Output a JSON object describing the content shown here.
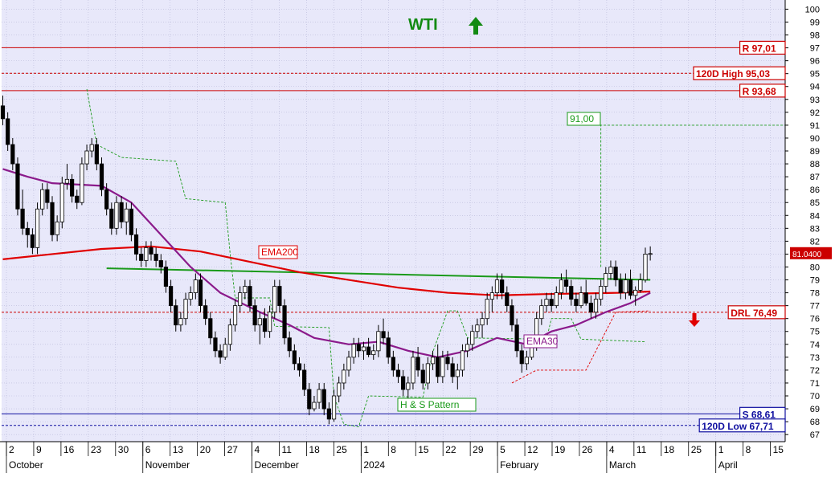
{
  "chart_data": {
    "type": "candlestick",
    "title": "WTI",
    "title_color": "#138a13",
    "trend_arrow": "up-arrow-icon",
    "y_axis": {
      "min": 67,
      "max": 100,
      "step": 1,
      "side": "right"
    },
    "x_labels": [
      "2",
      "9",
      "16",
      "23",
      "30",
      "6",
      "13",
      "20",
      "27",
      "4",
      "11",
      "18",
      "25",
      "1",
      "8",
      "15",
      "22",
      "29",
      "5",
      "12",
      "19",
      "26",
      "4",
      "11",
      "18",
      "25",
      "1",
      "8",
      "15"
    ],
    "month_labels": [
      "October",
      "November",
      "December",
      "2024",
      "February",
      "March",
      "April"
    ],
    "colors": {
      "background": "#e8e8fa",
      "up": "#ffffff",
      "down": "#000000",
      "ema200": "#e00000",
      "ema30": "#8b1a8b",
      "neckline": "#1a9a1a",
      "stop": "#e00000",
      "level_line": "#cc0000",
      "support_line": "#1010a0"
    },
    "candles": [
      [
        92.5,
        93.3,
        91.0,
        91.5
      ],
      [
        91.5,
        92.0,
        89.0,
        89.5
      ],
      [
        89.5,
        90.0,
        87.5,
        88.0
      ],
      [
        88.0,
        88.5,
        84.0,
        84.5
      ],
      [
        84.5,
        86.0,
        82.5,
        83.0
      ],
      [
        83.0,
        83.5,
        81.5,
        82.5
      ],
      [
        82.5,
        83.0,
        81.0,
        81.5
      ],
      [
        81.5,
        85.0,
        81.0,
        84.5
      ],
      [
        84.5,
        86.5,
        84.0,
        86.0
      ],
      [
        86.0,
        86.5,
        84.5,
        85.0
      ],
      [
        85.0,
        85.5,
        82.0,
        82.5
      ],
      [
        82.5,
        84.0,
        82.0,
        83.5
      ],
      [
        83.5,
        87.0,
        83.0,
        86.5
      ],
      [
        86.5,
        88.0,
        86.0,
        86.8
      ],
      [
        86.8,
        87.2,
        85.0,
        85.5
      ],
      [
        85.5,
        86.0,
        84.5,
        85.0
      ],
      [
        85.0,
        88.5,
        84.8,
        88.0
      ],
      [
        88.0,
        89.5,
        87.5,
        89.0
      ],
      [
        89.0,
        90.0,
        88.5,
        89.5
      ],
      [
        89.5,
        90.0,
        87.5,
        88.0
      ],
      [
        88.0,
        88.5,
        85.5,
        86.0
      ],
      [
        86.0,
        86.5,
        84.0,
        84.5
      ],
      [
        84.5,
        85.0,
        82.5,
        83.0
      ],
      [
        83.0,
        85.5,
        82.5,
        85.0
      ],
      [
        85.0,
        85.5,
        83.0,
        83.5
      ],
      [
        83.5,
        85.0,
        82.5,
        84.5
      ],
      [
        84.5,
        85.0,
        82.0,
        82.5
      ],
      [
        82.5,
        83.0,
        80.5,
        81.0
      ],
      [
        81.0,
        81.5,
        80.0,
        80.5
      ],
      [
        80.5,
        82.0,
        80.0,
        81.5
      ],
      [
        81.5,
        82.0,
        80.5,
        81.0
      ],
      [
        81.0,
        81.5,
        80.0,
        80.5
      ],
      [
        80.5,
        81.0,
        79.5,
        80.0
      ],
      [
        80.0,
        80.5,
        78.0,
        78.5
      ],
      [
        78.5,
        79.0,
        76.5,
        77.0
      ],
      [
        77.0,
        77.5,
        75.0,
        75.5
      ],
      [
        75.5,
        76.5,
        75.0,
        76.0
      ],
      [
        76.0,
        78.0,
        75.5,
        77.5
      ],
      [
        77.5,
        78.5,
        77.0,
        78.0
      ],
      [
        78.0,
        79.5,
        77.5,
        79.0
      ],
      [
        79.0,
        79.5,
        76.5,
        77.0
      ],
      [
        77.0,
        77.5,
        75.5,
        76.0
      ],
      [
        76.0,
        76.5,
        74.0,
        74.5
      ],
      [
        74.5,
        75.0,
        73.0,
        73.5
      ],
      [
        73.5,
        74.0,
        72.5,
        73.0
      ],
      [
        73.0,
        74.5,
        72.8,
        74.0
      ],
      [
        74.0,
        76.0,
        73.5,
        75.5
      ],
      [
        75.5,
        77.5,
        75.0,
        77.0
      ],
      [
        77.0,
        78.5,
        76.5,
        78.0
      ],
      [
        78.0,
        79.0,
        77.5,
        78.5
      ],
      [
        78.5,
        79.0,
        76.5,
        77.0
      ],
      [
        77.0,
        77.5,
        75.0,
        75.5
      ],
      [
        75.5,
        76.5,
        74.0,
        76.0
      ],
      [
        76.0,
        76.8,
        74.5,
        75.0
      ],
      [
        75.0,
        77.0,
        74.5,
        76.5
      ],
      [
        76.5,
        79.0,
        76.0,
        78.5
      ],
      [
        78.5,
        79.0,
        76.5,
        77.0
      ],
      [
        77.0,
        77.5,
        74.0,
        74.5
      ],
      [
        74.5,
        75.0,
        73.0,
        73.5
      ],
      [
        73.5,
        74.0,
        72.0,
        72.5
      ],
      [
        72.5,
        73.0,
        71.5,
        72.0
      ],
      [
        72.0,
        72.5,
        70.0,
        70.5
      ],
      [
        70.5,
        71.0,
        68.5,
        69.0
      ],
      [
        69.0,
        70.0,
        68.8,
        69.5
      ],
      [
        69.5,
        71.0,
        69.0,
        70.5
      ],
      [
        70.5,
        71.0,
        68.5,
        69.0
      ],
      [
        69.0,
        69.5,
        67.8,
        68.2
      ],
      [
        68.2,
        70.5,
        68.0,
        70.0
      ],
      [
        70.0,
        71.5,
        69.5,
        71.0
      ],
      [
        71.0,
        72.5,
        70.5,
        72.0
      ],
      [
        72.0,
        73.5,
        71.5,
        73.0
      ],
      [
        73.0,
        74.5,
        72.5,
        74.0
      ],
      [
        74.0,
        74.5,
        73.0,
        73.5
      ],
      [
        73.5,
        74.2,
        72.8,
        73.8
      ],
      [
        73.8,
        74.5,
        73.0,
        73.2
      ],
      [
        73.2,
        74.0,
        72.8,
        73.5
      ],
      [
        73.5,
        75.5,
        73.0,
        75.0
      ],
      [
        75.0,
        76.0,
        74.0,
        74.5
      ],
      [
        74.5,
        75.0,
        72.5,
        73.0
      ],
      [
        73.0,
        73.5,
        71.5,
        72.0
      ],
      [
        72.0,
        72.5,
        71.0,
        71.5
      ],
      [
        71.5,
        72.0,
        70.0,
        70.5
      ],
      [
        70.5,
        71.5,
        69.5,
        71.0
      ],
      [
        71.0,
        73.5,
        70.5,
        73.0
      ],
      [
        73.0,
        73.8,
        71.5,
        72.0
      ],
      [
        72.0,
        72.5,
        70.5,
        71.0
      ],
      [
        71.0,
        73.0,
        70.5,
        72.5
      ],
      [
        72.5,
        73.5,
        72.0,
        73.0
      ],
      [
        73.0,
        74.0,
        71.0,
        71.5
      ],
      [
        71.5,
        73.5,
        71.0,
        73.0
      ],
      [
        73.0,
        73.5,
        72.0,
        72.5
      ],
      [
        72.5,
        73.0,
        71.0,
        71.5
      ],
      [
        71.5,
        72.5,
        70.5,
        72.0
      ],
      [
        72.0,
        74.0,
        71.5,
        73.5
      ],
      [
        73.5,
        74.5,
        73.0,
        74.0
      ],
      [
        74.0,
        75.5,
        73.5,
        75.0
      ],
      [
        75.0,
        76.0,
        74.5,
        75.5
      ],
      [
        75.5,
        76.5,
        74.5,
        76.0
      ],
      [
        76.0,
        78.0,
        75.5,
        77.5
      ],
      [
        77.5,
        78.5,
        76.5,
        78.0
      ],
      [
        78.0,
        79.5,
        77.5,
        79.0
      ],
      [
        79.0,
        79.5,
        77.5,
        78.0
      ],
      [
        78.0,
        78.5,
        76.5,
        77.0
      ],
      [
        77.0,
        77.5,
        75.0,
        75.5
      ],
      [
        75.5,
        76.0,
        73.0,
        73.5
      ],
      [
        73.5,
        74.0,
        71.8,
        72.5
      ],
      [
        72.5,
        73.5,
        72.0,
        73.0
      ],
      [
        73.0,
        74.5,
        72.8,
        74.0
      ],
      [
        74.0,
        76.5,
        73.5,
        76.0
      ],
      [
        76.0,
        77.5,
        75.5,
        77.0
      ],
      [
        77.0,
        78.0,
        76.5,
        77.5
      ],
      [
        77.5,
        78.0,
        76.5,
        77.0
      ],
      [
        77.0,
        78.5,
        76.8,
        78.0
      ],
      [
        78.0,
        79.5,
        77.5,
        79.0
      ],
      [
        79.0,
        79.8,
        78.0,
        78.5
      ],
      [
        78.5,
        79.0,
        77.0,
        77.5
      ],
      [
        77.5,
        78.0,
        76.5,
        77.0
      ],
      [
        77.0,
        78.5,
        76.8,
        78.0
      ],
      [
        78.0,
        79.0,
        77.0,
        77.2
      ],
      [
        77.2,
        77.8,
        76.0,
        76.5
      ],
      [
        76.5,
        78.0,
        76.0,
        77.5
      ],
      [
        77.5,
        79.0,
        77.0,
        78.5
      ],
      [
        78.5,
        80.0,
        78.0,
        79.5
      ],
      [
        79.5,
        80.5,
        79.0,
        80.0
      ],
      [
        80.0,
        80.5,
        78.5,
        79.0
      ],
      [
        79.0,
        79.5,
        77.5,
        78.0
      ],
      [
        78.0,
        79.5,
        77.5,
        79.0
      ],
      [
        79.0,
        79.8,
        77.5,
        77.8
      ],
      [
        77.8,
        78.5,
        77.0,
        78.2
      ],
      [
        78.2,
        79.5,
        78.0,
        79.0
      ],
      [
        79.0,
        81.5,
        78.8,
        81.0
      ],
      [
        81.0,
        81.6,
        80.5,
        81.04
      ]
    ],
    "ema200": [
      [
        0,
        80.6
      ],
      [
        10,
        81.0
      ],
      [
        20,
        81.4
      ],
      [
        30,
        81.6
      ],
      [
        40,
        81.2
      ],
      [
        50,
        80.4
      ],
      [
        60,
        79.6
      ],
      [
        70,
        79.0
      ],
      [
        80,
        78.4
      ],
      [
        90,
        78.0
      ],
      [
        100,
        77.8
      ],
      [
        110,
        77.9
      ],
      [
        125,
        78.0
      ],
      [
        131,
        78.1
      ]
    ],
    "ema30": [
      [
        0,
        87.6
      ],
      [
        5,
        87.0
      ],
      [
        10,
        86.5
      ],
      [
        20,
        86.3
      ],
      [
        26,
        85.0
      ],
      [
        32,
        82.5
      ],
      [
        38,
        80.0
      ],
      [
        44,
        78.0
      ],
      [
        52,
        76.5
      ],
      [
        58,
        75.5
      ],
      [
        63,
        74.5
      ],
      [
        70,
        74.0
      ],
      [
        76,
        74.2
      ],
      [
        82,
        73.5
      ],
      [
        88,
        73.0
      ],
      [
        94,
        73.5
      ],
      [
        100,
        74.5
      ],
      [
        106,
        74.0
      ],
      [
        111,
        75.0
      ],
      [
        116,
        75.5
      ],
      [
        122,
        76.5
      ],
      [
        127,
        77.2
      ],
      [
        131,
        78.0
      ]
    ],
    "neckline": [
      [
        21,
        79.9
      ],
      [
        131,
        79.0
      ]
    ],
    "stop_line": [
      [
        17,
        93.8
      ],
      [
        19,
        89.5
      ],
      [
        24,
        88.5
      ],
      [
        35,
        88.2
      ],
      [
        37,
        85.3
      ],
      [
        45,
        85.0
      ],
      [
        46,
        81.0
      ],
      [
        47,
        77.6
      ],
      [
        54,
        77.6
      ],
      [
        55,
        75.4
      ],
      [
        66,
        75.3
      ],
      [
        67,
        70.0
      ],
      [
        69,
        67.8
      ],
      [
        72,
        67.6
      ],
      [
        74,
        70.0
      ],
      [
        85,
        69.9
      ],
      [
        87,
        73.4
      ],
      [
        90,
        76.6
      ],
      [
        92,
        76.6
      ],
      [
        94,
        74.5
      ],
      [
        110,
        74.4
      ],
      [
        111,
        76.0
      ],
      [
        115,
        76.0
      ],
      [
        117,
        74.4
      ],
      [
        130,
        74.2
      ]
    ],
    "levels": [
      {
        "value": 97.01,
        "label": "R 97,01",
        "style": "solid",
        "color": "#cc0000"
      },
      {
        "value": 95.03,
        "label": "120D High 95,03",
        "style": "dashed",
        "color": "#cc0000"
      },
      {
        "value": 93.68,
        "label": "R 93,68",
        "style": "solid",
        "color": "#cc0000"
      },
      {
        "value": 76.49,
        "label": "DRL 76,49",
        "style": "dashed",
        "color": "#cc0000"
      },
      {
        "value": 68.61,
        "label": "S 68,61",
        "style": "solid",
        "color": "#1010a0"
      },
      {
        "value": 67.71,
        "label": "120D Low 67,71",
        "style": "dashed",
        "color": "#1010a0"
      }
    ],
    "target_label": "91,00",
    "target_value": 91.0,
    "last_price_label": "81.0400",
    "last_price_value": 81.04,
    "annotations": [
      {
        "text": "EMA200",
        "color": "#e00000"
      },
      {
        "text": "EMA30",
        "color": "#8b1a8b"
      },
      {
        "text": "H & S Pattern",
        "color": "#1a9a1a"
      }
    ],
    "down_arrow": "down-arrow-icon"
  }
}
